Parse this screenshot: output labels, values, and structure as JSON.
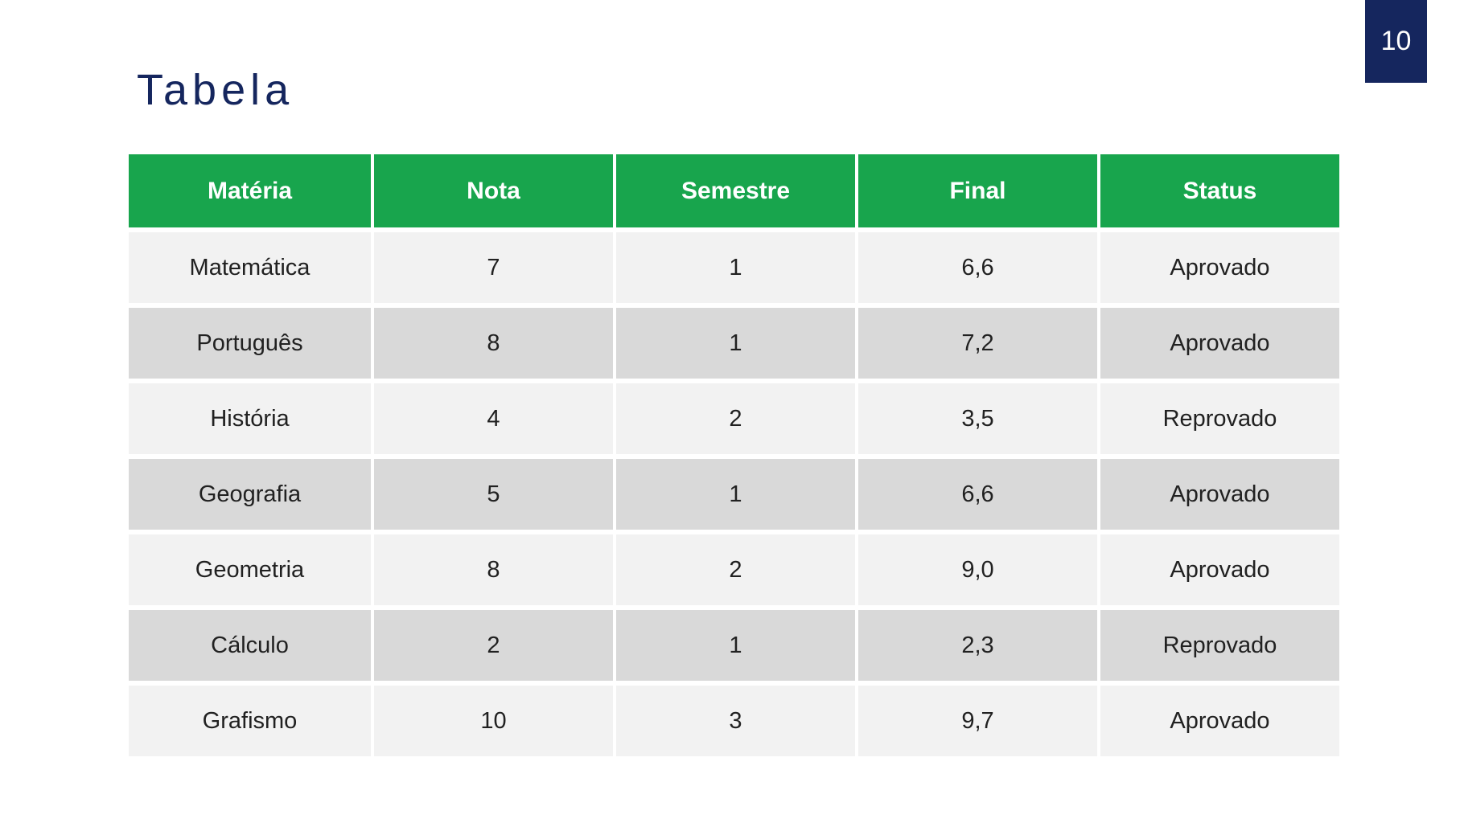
{
  "page": {
    "number": "10",
    "title": "Tabela"
  },
  "colors": {
    "header_green": "#18a54d",
    "navy": "#15265e",
    "row_light": "#f2f2f2",
    "row_dark": "#d9d9d9",
    "header_text": "#ffffff",
    "cell_text": "#212121"
  },
  "table": {
    "columns": [
      "Matéria",
      "Nota",
      "Semestre",
      "Final",
      "Status"
    ],
    "rows": [
      [
        "Matemática",
        "7",
        "1",
        "6,6",
        "Aprovado"
      ],
      [
        "Português",
        "8",
        "1",
        "7,2",
        "Aprovado"
      ],
      [
        "História",
        "4",
        "2",
        "3,5",
        "Reprovado"
      ],
      [
        "Geografia",
        "5",
        "1",
        "6,6",
        "Aprovado"
      ],
      [
        "Geometria",
        "8",
        "2",
        "9,0",
        "Aprovado"
      ],
      [
        "Cálculo",
        "2",
        "1",
        "2,3",
        "Reprovado"
      ],
      [
        "Grafismo",
        "10",
        "3",
        "9,7",
        "Aprovado"
      ]
    ]
  }
}
